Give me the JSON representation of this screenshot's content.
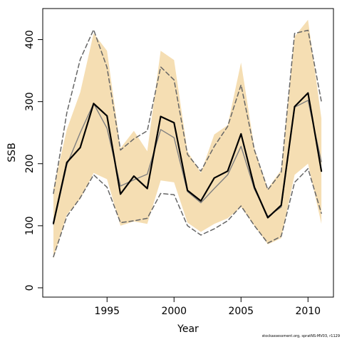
{
  "chart_data": {
    "type": "line",
    "xlabel": "Year",
    "ylabel": "SSB",
    "xlim": [
      1990.2,
      2011.9
    ],
    "ylim": [
      -15,
      450
    ],
    "x_ticks": [
      1995,
      2000,
      2005,
      2010
    ],
    "x_tick_labels": [
      "1995",
      "2000",
      "2005",
      "2010"
    ],
    "y_ticks": [
      0,
      100,
      200,
      300,
      400
    ],
    "y_tick_labels": [
      "0",
      "100",
      "200",
      "300",
      "400"
    ],
    "grid": false,
    "x": [
      1991,
      1992,
      1993,
      1994,
      1995,
      1996,
      1997,
      1998,
      1999,
      2000,
      2001,
      2002,
      2003,
      2004,
      2005,
      2006,
      2007,
      2008,
      2009,
      2010,
      2011
    ],
    "band": {
      "color": "#F5DEB3",
      "lower": [
        47,
        118,
        143,
        185,
        175,
        100,
        107,
        103,
        173,
        170,
        105,
        90,
        103,
        112,
        130,
        100,
        70,
        80,
        182,
        200,
        103
      ],
      "upper": [
        160,
        255,
        315,
        410,
        382,
        225,
        253,
        220,
        382,
        367,
        220,
        185,
        247,
        262,
        363,
        225,
        160,
        190,
        405,
        432,
        273
      ]
    },
    "series": [
      {
        "color": "#000000",
        "style": "solid-thick",
        "values": [
          104,
          202,
          226,
          297,
          277,
          151,
          180,
          160,
          276,
          266,
          157,
          140,
          177,
          188,
          248,
          162,
          113,
          133,
          292,
          314,
          188
        ]
      },
      {
        "color": "#808080",
        "style": "solid-thin",
        "values": [
          102,
          198,
          250,
          297,
          257,
          164,
          174,
          183,
          255,
          242,
          155,
          137,
          160,
          182,
          228,
          159,
          115,
          130,
          291,
          302,
          203
        ]
      },
      {
        "color": "#666666",
        "style": "dashed",
        "values": [
          152,
          282,
          368,
          416,
          355,
          222,
          240,
          253,
          356,
          335,
          215,
          188,
          228,
          260,
          327,
          222,
          158,
          186,
          410,
          415,
          300
        ]
      },
      {
        "color": "#666666",
        "style": "dashed",
        "values": [
          50,
          115,
          145,
          182,
          162,
          105,
          108,
          112,
          152,
          150,
          100,
          85,
          95,
          108,
          132,
          100,
          72,
          83,
          170,
          192,
          120
        ]
      }
    ]
  },
  "caption": "stockassessment.org, spratNS-MV03, r1129"
}
